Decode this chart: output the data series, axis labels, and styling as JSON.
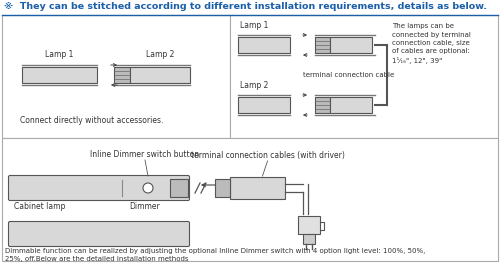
{
  "title": "※  They can be stitched according to different installation requirements, details as below.",
  "title_color": "#1a5fa8",
  "bg_color": "#ffffff",
  "border_color": "#aaaaaa",
  "lamp_color": "#d8d8d8",
  "connector_color": "#888888",
  "text_color": "#333333",
  "top_left_label1": "Lamp 1",
  "top_left_label2": "Lamp 2",
  "top_left_bottom_text": "Connect directly without accessories.",
  "top_right_lamp1": "Lamp 1",
  "top_right_lamp2": "Lamp 2",
  "top_right_cable_label": "terminal connection cable",
  "top_right_desc": "The lamps can be\nconnected by terminal\nconnection cable, size\nof cables are optional:\n1¹⁄₁₆\", 12\", 39\"",
  "bottom_label1": "Inline Dimmer switch button",
  "bottom_label2": "Cabinet lamp",
  "bottom_label3": "Dimmer",
  "bottom_cable_label": "terminal connection cables (with driver)",
  "bottom_desc": "Dimmable function can be realized by adjusting the optional Inline Dimmer switch with 4 option light level: 100%, 50%,\n25%, off.Below are the detailed installation methods"
}
